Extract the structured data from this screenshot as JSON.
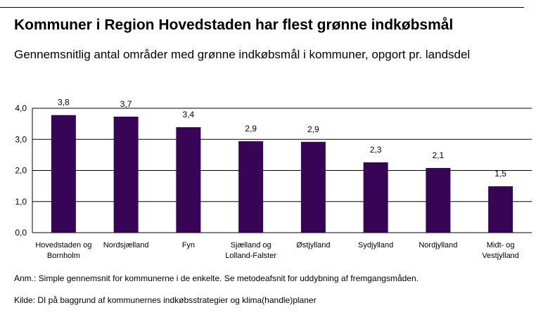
{
  "title": "Kommuner i Region Hovedstaden har flest grønne indkøbsmål",
  "subtitle": "Gennemsnitlig antal områder med grønne indkøbsmål i kommuner, opgort pr. landsdel",
  "note": "Anm.: Simple gennemsnit for kommunerne i de enkelte. Se metodeafsnit for uddybning af fremgangsmåden.",
  "source": "Kilde: DI på baggrund af kommunernes indkøbsstrategier og klima(handle)planer",
  "colors": {
    "bar": "#380456",
    "grid": "#000000"
  },
  "chart_data": {
    "type": "bar",
    "categories": [
      [
        "Hovedstaden og",
        "Bornholm"
      ],
      [
        "Nordsjælland"
      ],
      [
        "Fyn"
      ],
      [
        "Sjælland og",
        "Lolland-Falster"
      ],
      [
        "Østjylland"
      ],
      [
        "Sydjylland"
      ],
      [
        "Nordjylland"
      ],
      [
        "Midt- og",
        "Vestjylland"
      ]
    ],
    "values": [
      3.78,
      3.73,
      3.39,
      2.94,
      2.92,
      2.26,
      2.08,
      1.49
    ],
    "data_labels": [
      "3,8",
      "3,7",
      "3,4",
      "2,9",
      "2,9",
      "2,3",
      "2,1",
      "1,5"
    ],
    "yticks": [
      "0,0",
      "1,0",
      "2,0",
      "3,0",
      "4,0"
    ],
    "ytick_values": [
      0,
      1,
      2,
      3,
      4
    ],
    "ylim": [
      0,
      4
    ],
    "grid": true,
    "xlabel": "",
    "ylabel": ""
  }
}
